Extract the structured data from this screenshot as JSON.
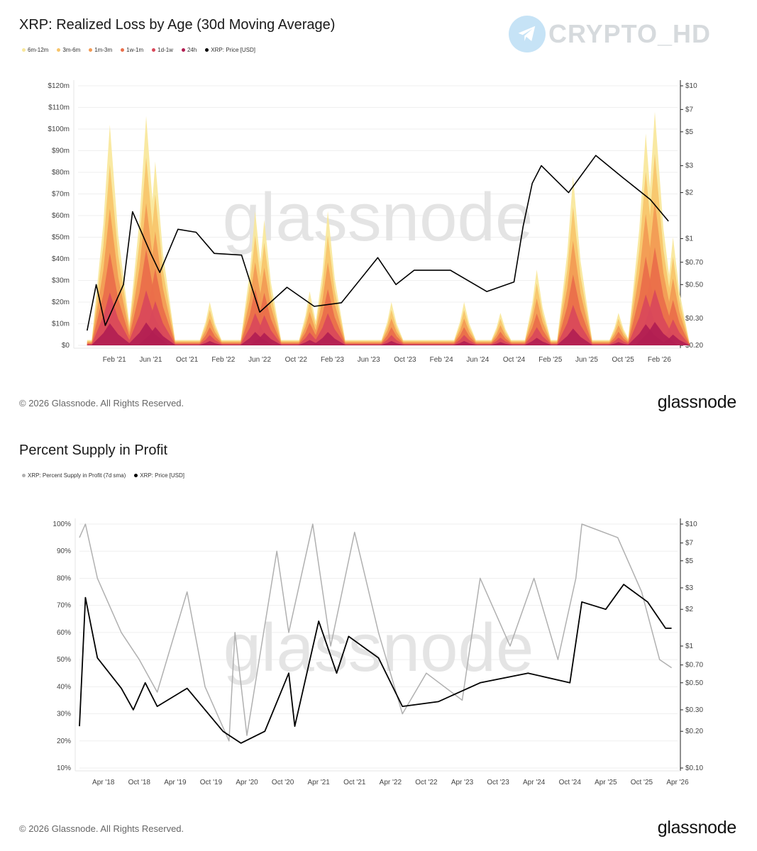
{
  "watermark_channel": "CRYPTO_HD",
  "chart_data": [
    {
      "type": "area",
      "title": "XRP: Realized Loss by Age (30d Moving Average)",
      "legend": [
        {
          "name": "6m-12m",
          "color": "#f8e79a"
        },
        {
          "name": "3m-6m",
          "color": "#f7c46a"
        },
        {
          "name": "1m-3m",
          "color": "#f29a54"
        },
        {
          "name": "1w-1m",
          "color": "#ea6e4a"
        },
        {
          "name": "1d-1w",
          "color": "#d9485a"
        },
        {
          "name": "24h",
          "color": "#b21e52"
        },
        {
          "name": "XRP: Price [USD]",
          "color": "#000000"
        }
      ],
      "x_ticks": [
        "Feb '21",
        "Jun '21",
        "Oct '21",
        "Feb '22",
        "Jun '22",
        "Oct '22",
        "Feb '23",
        "Jun '23",
        "Oct '23",
        "Feb '24",
        "Jun '24",
        "Oct '24",
        "Feb '25",
        "Jun '25",
        "Oct '25",
        "Feb '26"
      ],
      "y_left_ticks": [
        "$0",
        "$10m",
        "$20m",
        "$30m",
        "$40m",
        "$50m",
        "$60m",
        "$70m",
        "$80m",
        "$90m",
        "$100m",
        "$110m",
        "$120m"
      ],
      "y_right_ticks": [
        "$0.20",
        "$0.30",
        "$0.50",
        "$0.70",
        "$1",
        "$2",
        "$3",
        "$5",
        "$7",
        "$10"
      ],
      "y_left_range": [
        0,
        120
      ],
      "y_right_scale": "log",
      "y_right_range": [
        0.2,
        10
      ],
      "loss_peaks": [
        {
          "date": "2021-01",
          "total_m": 102
        },
        {
          "date": "2021-05",
          "total_m": 106
        },
        {
          "date": "2021-06",
          "total_m": 85
        },
        {
          "date": "2021-12",
          "total_m": 20
        },
        {
          "date": "2022-05",
          "total_m": 62
        },
        {
          "date": "2022-06",
          "total_m": 58
        },
        {
          "date": "2022-11",
          "total_m": 25
        },
        {
          "date": "2023-01",
          "total_m": 62
        },
        {
          "date": "2023-08",
          "total_m": 20
        },
        {
          "date": "2024-04",
          "total_m": 20
        },
        {
          "date": "2024-08",
          "total_m": 15
        },
        {
          "date": "2024-12",
          "total_m": 35
        },
        {
          "date": "2025-04",
          "total_m": 78
        },
        {
          "date": "2025-09",
          "total_m": 15
        },
        {
          "date": "2025-12",
          "total_m": 98
        },
        {
          "date": "2026-01",
          "total_m": 108
        },
        {
          "date": "2026-03",
          "total_m": 50
        }
      ],
      "price_series": [
        {
          "date": "2020-11",
          "price": 0.25
        },
        {
          "date": "2020-12",
          "price": 0.5
        },
        {
          "date": "2021-01",
          "price": 0.27
        },
        {
          "date": "2021-03",
          "price": 0.5
        },
        {
          "date": "2021-04",
          "price": 1.5
        },
        {
          "date": "2021-06",
          "price": 0.8
        },
        {
          "date": "2021-07",
          "price": 0.6
        },
        {
          "date": "2021-09",
          "price": 1.15
        },
        {
          "date": "2021-11",
          "price": 1.1
        },
        {
          "date": "2022-01",
          "price": 0.8
        },
        {
          "date": "2022-04",
          "price": 0.78
        },
        {
          "date": "2022-06",
          "price": 0.33
        },
        {
          "date": "2022-09",
          "price": 0.48
        },
        {
          "date": "2022-12",
          "price": 0.36
        },
        {
          "date": "2023-03",
          "price": 0.38
        },
        {
          "date": "2023-07",
          "price": 0.75
        },
        {
          "date": "2023-09",
          "price": 0.5
        },
        {
          "date": "2023-11",
          "price": 0.62
        },
        {
          "date": "2024-03",
          "price": 0.62
        },
        {
          "date": "2024-07",
          "price": 0.45
        },
        {
          "date": "2024-10",
          "price": 0.52
        },
        {
          "date": "2024-11",
          "price": 1.2
        },
        {
          "date": "2024-12",
          "price": 2.3
        },
        {
          "date": "2025-01",
          "price": 3.0
        },
        {
          "date": "2025-04",
          "price": 2.0
        },
        {
          "date": "2025-07",
          "price": 3.5
        },
        {
          "date": "2025-10",
          "price": 2.5
        },
        {
          "date": "2026-01",
          "price": 1.8
        },
        {
          "date": "2026-03",
          "price": 1.3
        }
      ]
    },
    {
      "type": "line",
      "title": "Percent Supply in Profit",
      "legend": [
        {
          "name": "XRP: Percent Supply in Profit (7d sma)",
          "color": "#b0b0b0"
        },
        {
          "name": "XRP: Price [USD]",
          "color": "#000000"
        }
      ],
      "x_ticks": [
        "Apr '18",
        "Oct '18",
        "Apr '19",
        "Oct '19",
        "Apr '20",
        "Oct '20",
        "Apr '21",
        "Oct '21",
        "Apr '22",
        "Oct '22",
        "Apr '23",
        "Oct '23",
        "Apr '24",
        "Oct '24",
        "Apr '25",
        "Oct '25",
        "Apr '26"
      ],
      "y_left_ticks": [
        "10%",
        "20%",
        "30%",
        "40%",
        "50%",
        "60%",
        "70%",
        "80%",
        "90%",
        "100%"
      ],
      "y_right_ticks": [
        "$0.10",
        "$0.20",
        "$0.30",
        "$0.50",
        "$0.70",
        "$1",
        "$2",
        "$3",
        "$5",
        "$7",
        "$10"
      ],
      "y_left_range": [
        10,
        100
      ],
      "y_right_scale": "log",
      "y_right_range": [
        0.1,
        10
      ],
      "supply_in_profit": [
        {
          "date": "2017-12",
          "pct": 95
        },
        {
          "date": "2018-01",
          "pct": 100
        },
        {
          "date": "2018-03",
          "pct": 80
        },
        {
          "date": "2018-07",
          "pct": 60
        },
        {
          "date": "2018-10",
          "pct": 50
        },
        {
          "date": "2019-01",
          "pct": 38
        },
        {
          "date": "2019-06",
          "pct": 75
        },
        {
          "date": "2019-09",
          "pct": 40
        },
        {
          "date": "2020-01",
          "pct": 20
        },
        {
          "date": "2020-02",
          "pct": 60
        },
        {
          "date": "2020-04",
          "pct": 22
        },
        {
          "date": "2020-09",
          "pct": 90
        },
        {
          "date": "2020-11",
          "pct": 60
        },
        {
          "date": "2021-03",
          "pct": 100
        },
        {
          "date": "2021-06",
          "pct": 55
        },
        {
          "date": "2021-10",
          "pct": 97
        },
        {
          "date": "2022-02",
          "pct": 60
        },
        {
          "date": "2022-06",
          "pct": 30
        },
        {
          "date": "2022-10",
          "pct": 45
        },
        {
          "date": "2023-04",
          "pct": 35
        },
        {
          "date": "2023-07",
          "pct": 80
        },
        {
          "date": "2023-12",
          "pct": 55
        },
        {
          "date": "2024-04",
          "pct": 80
        },
        {
          "date": "2024-08",
          "pct": 50
        },
        {
          "date": "2024-11",
          "pct": 80
        },
        {
          "date": "2024-12",
          "pct": 100
        },
        {
          "date": "2025-06",
          "pct": 95
        },
        {
          "date": "2025-10",
          "pct": 75
        },
        {
          "date": "2026-01",
          "pct": 50
        },
        {
          "date": "2026-03",
          "pct": 47
        }
      ],
      "price_series": [
        {
          "date": "2017-12",
          "price": 0.22
        },
        {
          "date": "2018-01",
          "price": 2.5
        },
        {
          "date": "2018-03",
          "price": 0.8
        },
        {
          "date": "2018-07",
          "price": 0.45
        },
        {
          "date": "2018-09",
          "price": 0.3
        },
        {
          "date": "2018-11",
          "price": 0.5
        },
        {
          "date": "2019-01",
          "price": 0.32
        },
        {
          "date": "2019-06",
          "price": 0.45
        },
        {
          "date": "2019-12",
          "price": 0.2
        },
        {
          "date": "2020-03",
          "price": 0.16
        },
        {
          "date": "2020-07",
          "price": 0.2
        },
        {
          "date": "2020-11",
          "price": 0.6
        },
        {
          "date": "2020-12",
          "price": 0.22
        },
        {
          "date": "2021-04",
          "price": 1.6
        },
        {
          "date": "2021-07",
          "price": 0.6
        },
        {
          "date": "2021-09",
          "price": 1.2
        },
        {
          "date": "2022-02",
          "price": 0.8
        },
        {
          "date": "2022-06",
          "price": 0.32
        },
        {
          "date": "2022-12",
          "price": 0.35
        },
        {
          "date": "2023-07",
          "price": 0.5
        },
        {
          "date": "2024-03",
          "price": 0.6
        },
        {
          "date": "2024-10",
          "price": 0.5
        },
        {
          "date": "2024-12",
          "price": 2.3
        },
        {
          "date": "2025-04",
          "price": 2.0
        },
        {
          "date": "2025-07",
          "price": 3.2
        },
        {
          "date": "2025-11",
          "price": 2.3
        },
        {
          "date": "2026-02",
          "price": 1.4
        },
        {
          "date": "2026-03",
          "price": 1.4
        }
      ]
    }
  ],
  "panel1": {
    "copyright": "© 2026 Glassnode. All Rights Reserved.",
    "brand": "glassnode",
    "chart_watermark": "glassnode"
  },
  "panel2": {
    "copyright": "© 2026 Glassnode. All Rights Reserved.",
    "brand": "glassnode",
    "chart_watermark": "glassnode"
  }
}
